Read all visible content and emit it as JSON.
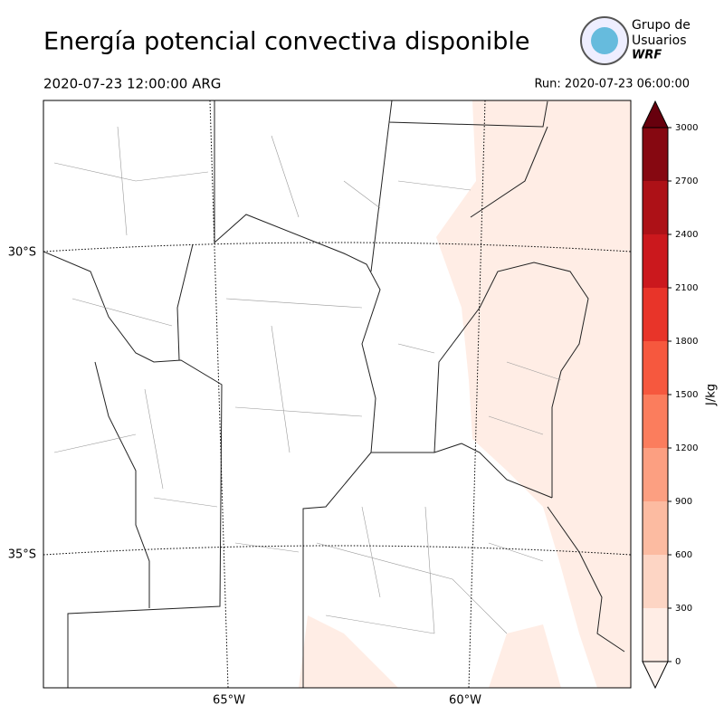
{
  "header": {
    "title": "Energía potencial convectiva disponible",
    "valid_time": "2020-07-23 12:00:00 ARG",
    "run": "Run: 2020-07-23 06:00:00",
    "logo": [
      "Grupo de",
      "Usuarios",
      "WRF"
    ]
  },
  "map": {
    "lat_labels": [
      "30°S",
      "35°S"
    ],
    "lon_labels": [
      "65°W",
      "60°W"
    ]
  },
  "colorbar": {
    "label": "J/kg",
    "ticks": [
      0,
      300,
      600,
      900,
      1200,
      1500,
      1800,
      2100,
      2400,
      2700,
      3000
    ],
    "colors": [
      "#ffede5",
      "#fdd5c4",
      "#fcbba1",
      "#fc9f81",
      "#fb7d5d",
      "#f6583e",
      "#e83429",
      "#cb181d",
      "#ad1117",
      "#860811"
    ],
    "under_color": "#fff5f0",
    "over_color": "#67000d"
  }
}
